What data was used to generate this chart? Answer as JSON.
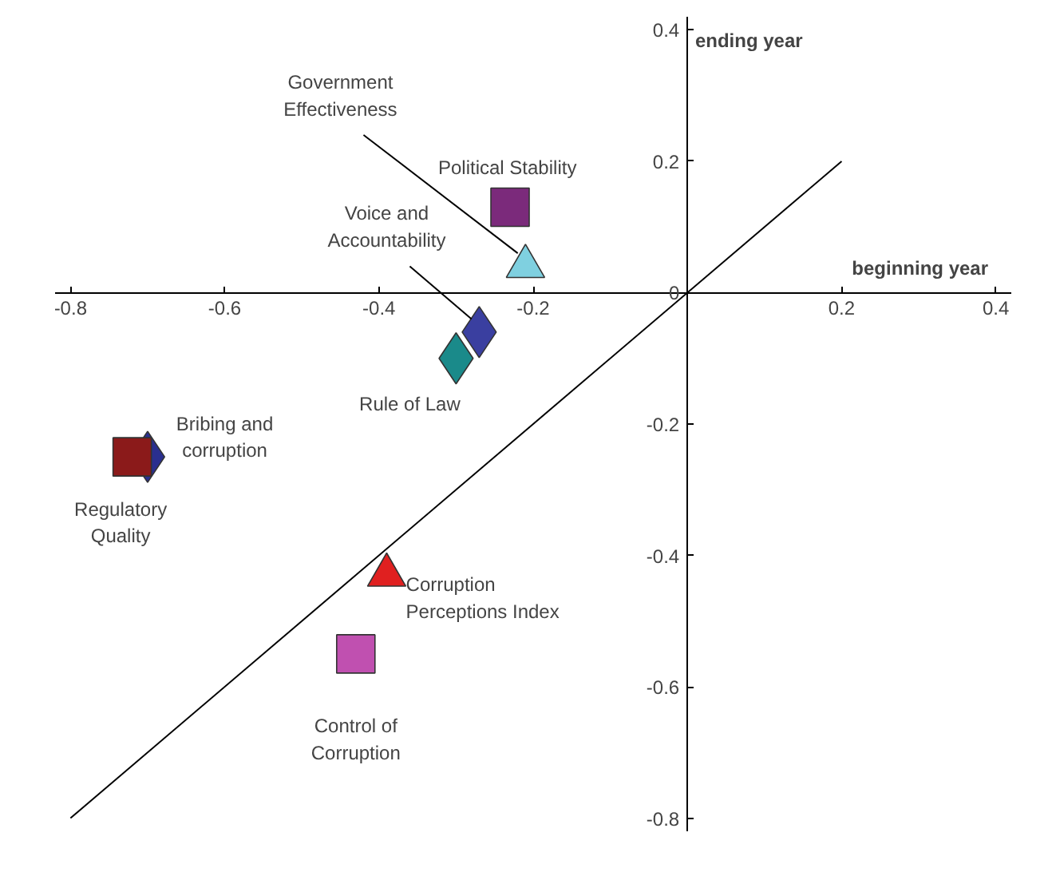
{
  "chart_data": {
    "type": "scatter",
    "xlabel": "beginning year",
    "ylabel": "ending year",
    "xlim": [
      -0.82,
      0.42
    ],
    "ylim": [
      -0.82,
      0.42
    ],
    "xticks": [
      -0.8,
      -0.6,
      -0.4,
      -0.2,
      0.2,
      0.4
    ],
    "yticks": [
      -0.8,
      -0.6,
      -0.4,
      -0.2,
      0,
      0.2,
      0.4
    ],
    "grid": false,
    "series": [
      {
        "type": "line",
        "x": [
          -0.8,
          0.2
        ],
        "values": [
          -0.8,
          0.2
        ],
        "color": "#000000"
      },
      {
        "name": "Political  Stability",
        "x": [
          -0.23
        ],
        "values": [
          0.13
        ],
        "color": "#7b2a7b",
        "marker": "square"
      },
      {
        "name": "Government\nEffectiveness",
        "x": [
          -0.21
        ],
        "values": [
          0.04
        ],
        "color": "#7fd0e0",
        "marker": "triangle"
      },
      {
        "name": "Voice and\nAccountability",
        "x": [
          -0.27
        ],
        "values": [
          -0.06
        ],
        "color": "#3a3fa0",
        "marker": "diamond"
      },
      {
        "name": "Rule of Law",
        "x": [
          -0.3
        ],
        "values": [
          -0.1
        ],
        "color": "#1a8a8a",
        "marker": "diamond"
      },
      {
        "name": "Bribing and\ncorruption",
        "x": [
          -0.7
        ],
        "values": [
          -0.25
        ],
        "color": "#2a2f8f",
        "marker": "diamond"
      },
      {
        "name": "Regulatory\nQuality",
        "x": [
          -0.72
        ],
        "values": [
          -0.25
        ],
        "color": "#8b1a1a",
        "marker": "square"
      },
      {
        "name": "Corruption\nPerceptions  Index",
        "x": [
          -0.39
        ],
        "values": [
          -0.43
        ],
        "color": "#e02020",
        "marker": "triangle"
      },
      {
        "name": "Control of\nCorruption",
        "x": [
          -0.43
        ],
        "values": [
          -0.55
        ],
        "color": "#c050b0",
        "marker": "square"
      }
    ]
  }
}
